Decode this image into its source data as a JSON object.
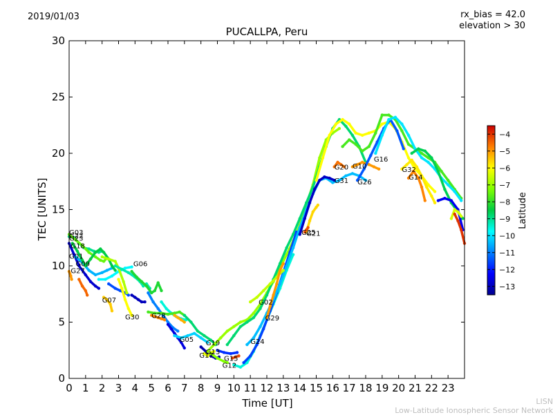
{
  "header": {
    "date": "2019/01/03",
    "rx_bias": "rx_bias = 42.0",
    "elevation": "elevation > 30"
  },
  "footer": {
    "line1": "LISN",
    "line2": "Low-Latitude Ionospheric Sensor Network"
  },
  "chart_data": {
    "type": "scatter",
    "title": "PUCALLPA, Peru",
    "xlabel": "Time [UT]",
    "ylabel": "TEC [UNITS]",
    "xlim": [
      0,
      24
    ],
    "ylim": [
      0,
      30
    ],
    "xticks": [
      0,
      1,
      2,
      3,
      4,
      5,
      6,
      7,
      8,
      9,
      10,
      11,
      12,
      13,
      14,
      15,
      16,
      17,
      18,
      19,
      20,
      21,
      22,
      23
    ],
    "yticks": [
      0,
      5,
      10,
      15,
      20,
      25,
      30
    ],
    "grid": false,
    "colorbar": {
      "label": "Latitude",
      "range": [
        -13.5,
        -3.5
      ],
      "ticks": [
        -4,
        -5,
        -6,
        -7,
        -8,
        -9,
        -10,
        -11,
        -12,
        -13
      ],
      "colormap": "jet"
    },
    "labels": [
      {
        "text": "G03",
        "x": 0.0,
        "y": 13.0
      },
      {
        "text": "G22",
        "x": 0.0,
        "y": 12.7
      },
      {
        "text": "G23",
        "x": 0.0,
        "y": 12.5
      },
      {
        "text": "G18",
        "x": 0.1,
        "y": 11.8
      },
      {
        "text": "G01",
        "x": 0.0,
        "y": 10.9
      },
      {
        "text": "G09",
        "x": 0.4,
        "y": 10.2
      },
      {
        "text": "G27",
        "x": 0.1,
        "y": 9.6
      },
      {
        "text": "G06",
        "x": 3.9,
        "y": 10.2
      },
      {
        "text": "G07",
        "x": 2.0,
        "y": 7.0
      },
      {
        "text": "G30",
        "x": 3.4,
        "y": 5.5
      },
      {
        "text": "G28",
        "x": 5.0,
        "y": 5.6
      },
      {
        "text": "G05",
        "x": 6.7,
        "y": 3.5
      },
      {
        "text": "G19",
        "x": 8.3,
        "y": 3.2
      },
      {
        "text": "G13",
        "x": 8.3,
        "y": 2.4
      },
      {
        "text": "G17",
        "x": 7.9,
        "y": 2.1
      },
      {
        "text": "G15",
        "x": 9.4,
        "y": 1.8
      },
      {
        "text": "G12",
        "x": 9.3,
        "y": 1.2
      },
      {
        "text": "G24",
        "x": 11.0,
        "y": 3.3
      },
      {
        "text": "G02",
        "x": 11.5,
        "y": 6.8
      },
      {
        "text": "G29",
        "x": 11.9,
        "y": 5.4
      },
      {
        "text": "G25",
        "x": 14.1,
        "y": 13.0
      },
      {
        "text": "G21",
        "x": 14.4,
        "y": 12.9
      },
      {
        "text": "G31",
        "x": 16.1,
        "y": 17.6
      },
      {
        "text": "G20",
        "x": 16.1,
        "y": 18.8
      },
      {
        "text": "G10",
        "x": 17.2,
        "y": 18.9
      },
      {
        "text": "G26",
        "x": 17.5,
        "y": 17.5
      },
      {
        "text": "G16",
        "x": 18.5,
        "y": 19.5
      },
      {
        "text": "G32",
        "x": 20.2,
        "y": 18.6
      },
      {
        "text": "G14",
        "x": 20.6,
        "y": 17.9
      }
    ],
    "series": [
      {
        "lat": -5.0,
        "x": [
          0.0,
          0.05,
          0.1,
          0.15
        ],
        "y": [
          9.5,
          9.3,
          9.1,
          8.8
        ]
      },
      {
        "lat": -12.8,
        "x": [
          0.0,
          0.3,
          0.6,
          1.0,
          1.3,
          1.6,
          1.8
        ],
        "y": [
          12.0,
          11.0,
          10.0,
          9.2,
          8.6,
          8.2,
          8.0
        ]
      },
      {
        "lat": -9.0,
        "x": [
          0.0,
          0.3,
          0.6,
          0.9,
          1.2,
          1.5,
          1.8,
          2.0
        ],
        "y": [
          12.6,
          12.5,
          12.0,
          11.6,
          11.5,
          11.3,
          11.2,
          11.3
        ]
      },
      {
        "lat": -7.5,
        "x": [
          0.0,
          0.4,
          0.8,
          1.2,
          1.6,
          1.9,
          2.1,
          2.3
        ],
        "y": [
          12.8,
          12.3,
          11.8,
          11.2,
          10.8,
          10.5,
          10.4,
          10.7
        ]
      },
      {
        "lat": -4.5,
        "x": [
          0.6,
          0.8,
          1.0,
          1.1
        ],
        "y": [
          8.8,
          8.2,
          7.8,
          7.4
        ]
      },
      {
        "lat": -10.5,
        "x": [
          0.4,
          0.8,
          1.2,
          1.6,
          2.0,
          2.3,
          2.6
        ],
        "y": [
          10.8,
          10.3,
          9.6,
          9.2,
          9.4,
          9.6,
          9.8
        ]
      },
      {
        "lat": -8.5,
        "x": [
          0.2,
          0.5,
          0.8,
          1.0,
          1.3,
          1.6,
          1.9,
          2.1,
          2.4,
          2.6,
          2.8
        ],
        "y": [
          12.0,
          11.3,
          10.5,
          10.0,
          10.6,
          11.2,
          11.5,
          11.2,
          10.6,
          10.0,
          9.6
        ]
      },
      {
        "lat": -5.5,
        "x": [
          2.1,
          2.3,
          2.5,
          2.6
        ],
        "y": [
          7.2,
          7.0,
          6.6,
          6.0
        ]
      },
      {
        "lat": -9.8,
        "x": [
          1.8,
          2.2,
          2.6,
          3.0,
          3.4,
          3.8
        ],
        "y": [
          8.8,
          8.8,
          9.1,
          9.5,
          9.8,
          9.9
        ]
      },
      {
        "lat": -11.5,
        "x": [
          2.4,
          2.8,
          3.1,
          3.4,
          3.6
        ],
        "y": [
          8.4,
          8.0,
          7.8,
          7.6,
          7.4
        ]
      },
      {
        "lat": -6.0,
        "x": [
          3.0,
          3.2,
          3.4,
          3.6,
          3.8
        ],
        "y": [
          8.8,
          8.0,
          7.0,
          6.2,
          5.6
        ]
      },
      {
        "lat": -6.8,
        "x": [
          2.0,
          2.4,
          2.8,
          3.0,
          3.3,
          3.5
        ],
        "y": [
          10.8,
          10.6,
          10.4,
          9.8,
          8.6,
          7.6
        ]
      },
      {
        "lat": -13.0,
        "x": [
          3.8,
          4.0,
          4.2,
          4.4,
          4.6
        ],
        "y": [
          7.4,
          7.2,
          7.0,
          6.8,
          6.8
        ]
      },
      {
        "lat": -9.2,
        "x": [
          2.8,
          3.2,
          3.6,
          4.0,
          4.3,
          4.5,
          4.7,
          4.9
        ],
        "y": [
          10.0,
          9.7,
          9.4,
          9.0,
          8.6,
          8.2,
          8.4,
          8.0
        ]
      },
      {
        "lat": -8.2,
        "x": [
          3.8,
          4.1,
          4.4,
          4.7,
          5.0,
          5.2,
          5.4,
          5.6
        ],
        "y": [
          9.5,
          9.0,
          8.6,
          8.2,
          7.6,
          7.8,
          8.5,
          7.8
        ]
      },
      {
        "lat": -11.0,
        "x": [
          4.8,
          5.1,
          5.4,
          5.7,
          6.0,
          6.3,
          6.6
        ],
        "y": [
          7.6,
          6.8,
          6.2,
          5.6,
          5.0,
          4.5,
          4.2
        ]
      },
      {
        "lat": -9.5,
        "x": [
          5.6,
          5.9,
          6.2,
          6.5,
          6.8,
          7.1
        ],
        "y": [
          6.8,
          6.2,
          5.8,
          5.5,
          5.3,
          5.2
        ]
      },
      {
        "lat": -4.8,
        "x": [
          5.0,
          5.2,
          5.4,
          5.6,
          5.8
        ],
        "y": [
          5.6,
          5.5,
          5.4,
          5.3,
          5.2
        ]
      },
      {
        "lat": -7.8,
        "x": [
          4.8,
          5.2,
          5.6,
          6.0,
          6.4,
          6.7,
          7.0
        ],
        "y": [
          5.9,
          5.8,
          5.8,
          5.7,
          5.8,
          5.9,
          5.6
        ]
      },
      {
        "lat": -5.2,
        "x": [
          6.4,
          6.6,
          6.8,
          7.0
        ],
        "y": [
          5.6,
          5.4,
          5.2,
          5.0
        ]
      },
      {
        "lat": -12.6,
        "x": [
          6.0,
          6.2,
          6.4,
          6.6,
          6.8,
          7.0
        ],
        "y": [
          4.8,
          4.4,
          4.0,
          3.6,
          3.2,
          2.7
        ]
      },
      {
        "lat": -10.2,
        "x": [
          6.4,
          6.8,
          7.2,
          7.6,
          8.0,
          8.4
        ],
        "y": [
          3.8,
          3.6,
          3.8,
          4.0,
          3.6,
          3.2
        ]
      },
      {
        "lat": -8.8,
        "x": [
          7.0,
          7.4,
          7.8,
          8.2,
          8.6,
          8.9
        ],
        "y": [
          5.6,
          5.0,
          4.2,
          3.8,
          3.4,
          3.0
        ]
      },
      {
        "lat": -13.2,
        "x": [
          8.0,
          8.3,
          8.6,
          8.9,
          9.1
        ],
        "y": [
          2.8,
          2.4,
          2.0,
          1.8,
          1.9
        ]
      },
      {
        "lat": -6.2,
        "x": [
          8.2,
          8.4,
          8.6,
          8.8
        ],
        "y": [
          2.2,
          2.0,
          2.3,
          2.4
        ]
      },
      {
        "lat": -7.2,
        "x": [
          8.6,
          9.0,
          9.4,
          9.6
        ],
        "y": [
          2.2,
          1.8,
          1.5,
          1.4
        ]
      },
      {
        "lat": -4.2,
        "x": [
          9.9,
          10.1,
          10.3
        ],
        "y": [
          1.8,
          1.9,
          2.0
        ]
      },
      {
        "lat": -11.8,
        "x": [
          9.0,
          9.4,
          9.8,
          10.2
        ],
        "y": [
          2.5,
          2.3,
          2.2,
          2.3
        ]
      },
      {
        "lat": -7.0,
        "x": [
          8.4,
          8.8,
          9.2,
          9.6,
          10.0,
          10.4,
          10.8,
          11.2,
          11.6,
          12.0,
          12.4,
          12.8,
          13.2,
          13.6,
          14.0,
          14.4,
          14.8,
          15.2,
          15.6,
          16.0,
          16.4
        ],
        "y": [
          2.4,
          3.0,
          3.6,
          4.2,
          4.6,
          5.0,
          5.2,
          5.8,
          6.6,
          7.6,
          8.6,
          9.8,
          11.0,
          12.2,
          13.6,
          15.4,
          17.2,
          19.6,
          21.2,
          21.8,
          22.2
        ]
      },
      {
        "lat": -8.8,
        "x": [
          9.6,
          10.0,
          10.4,
          10.8,
          11.2,
          11.6,
          12.0,
          12.4,
          12.8,
          13.2,
          13.6,
          14.0,
          14.4,
          14.8,
          15.2,
          15.6,
          16.0,
          16.4,
          16.8,
          17.2,
          17.6,
          18.0
        ],
        "y": [
          3.0,
          3.8,
          4.6,
          5.0,
          5.4,
          6.2,
          7.4,
          8.8,
          10.2,
          11.6,
          12.8,
          14.2,
          15.6,
          17.0,
          18.8,
          20.6,
          22.2,
          23.0,
          22.4,
          21.6,
          20.6,
          19.2
        ]
      },
      {
        "lat": -9.5,
        "x": [
          10.0,
          10.4,
          10.8,
          11.2,
          11.6,
          12.0,
          12.4,
          12.8,
          13.2,
          13.6
        ],
        "y": [
          1.2,
          1.0,
          1.4,
          2.4,
          3.8,
          5.2,
          6.6,
          8.0,
          9.6,
          11.0
        ]
      },
      {
        "lat": -11.6,
        "x": [
          10.6,
          11.0,
          11.4,
          11.8,
          12.2,
          12.6,
          13.0,
          13.4,
          13.8
        ],
        "y": [
          1.4,
          2.0,
          3.0,
          4.4,
          6.0,
          7.6,
          9.4,
          11.2,
          13.0
        ]
      },
      {
        "lat": -10.4,
        "x": [
          10.8,
          11.2,
          11.6,
          12.0,
          12.4,
          12.8,
          13.2,
          13.6,
          14.0,
          14.4,
          14.8,
          15.2,
          15.6,
          16.0,
          16.4,
          16.8,
          17.2,
          17.6,
          18.0
        ],
        "y": [
          3.0,
          3.6,
          4.6,
          5.8,
          7.0,
          8.4,
          10.0,
          11.6,
          13.4,
          15.0,
          16.4,
          17.6,
          17.8,
          17.4,
          17.6,
          18.0,
          18.2,
          18.0,
          17.6
        ]
      },
      {
        "lat": -6.6,
        "x": [
          11.0,
          11.4,
          11.8,
          12.2,
          12.6,
          13.0
        ],
        "y": [
          6.8,
          7.2,
          7.8,
          8.4,
          9.0,
          9.6
        ]
      },
      {
        "lat": -5.0,
        "x": [
          12.0,
          12.2,
          12.4,
          12.6,
          12.8,
          13.0
        ],
        "y": [
          5.4,
          6.4,
          7.4,
          8.4,
          9.6,
          10.2
        ]
      },
      {
        "lat": -12.9,
        "x": [
          14.0,
          14.3,
          14.6,
          14.9,
          15.2,
          15.5,
          15.8,
          16.1
        ],
        "y": [
          12.8,
          14.2,
          15.6,
          16.8,
          17.6,
          17.9,
          17.8,
          17.6
        ]
      },
      {
        "lat": -5.6,
        "x": [
          14.4,
          14.6,
          14.8,
          15.0,
          15.1
        ],
        "y": [
          13.0,
          14.0,
          14.8,
          15.2,
          15.4
        ]
      },
      {
        "lat": -4.3,
        "x": [
          14.3,
          14.4,
          14.5
        ],
        "y": [
          13.0,
          13.2,
          13.4
        ]
      },
      {
        "lat": -6.0,
        "x": [
          15.0,
          15.4,
          15.8,
          16.2,
          16.6,
          17.0,
          17.4,
          17.8,
          18.2,
          18.6,
          19.0,
          19.4,
          19.8,
          20.2,
          20.6,
          21.0,
          21.4,
          21.8,
          22.2
        ],
        "y": [
          17.6,
          19.6,
          21.6,
          22.6,
          23.0,
          22.6,
          21.8,
          21.6,
          21.8,
          22.0,
          22.6,
          22.8,
          22.2,
          21.0,
          19.6,
          18.6,
          18.0,
          17.2,
          16.6
        ]
      },
      {
        "lat": -7.8,
        "x": [
          16.6,
          17.0,
          17.4,
          17.8,
          18.2,
          18.6,
          19.0,
          19.4,
          19.8,
          20.2,
          20.6,
          21.0,
          21.4,
          21.8,
          22.2,
          22.6,
          23.0,
          23.4,
          23.8
        ],
        "y": [
          20.6,
          21.2,
          20.8,
          20.2,
          20.6,
          21.8,
          23.4,
          23.4,
          23.0,
          22.0,
          20.8,
          20.4,
          20.0,
          19.6,
          19.2,
          18.4,
          17.6,
          16.8,
          16.0
        ]
      },
      {
        "lat": -4.6,
        "x": [
          16.1,
          16.3,
          16.5,
          16.7
        ],
        "y": [
          18.8,
          19.2,
          19.0,
          18.8
        ]
      },
      {
        "lat": -5.0,
        "x": [
          17.2,
          17.5,
          17.8,
          18.2,
          18.5,
          18.8
        ],
        "y": [
          18.8,
          19.0,
          19.2,
          19.0,
          18.8,
          18.6
        ]
      },
      {
        "lat": -11.4,
        "x": [
          17.5,
          17.9,
          18.3,
          18.7,
          19.1,
          19.5,
          19.9,
          20.3
        ],
        "y": [
          17.6,
          18.6,
          19.8,
          21.0,
          22.2,
          23.0,
          22.0,
          20.4
        ]
      },
      {
        "lat": -10.0,
        "x": [
          18.6,
          19.0,
          19.4,
          19.8,
          20.2,
          20.6,
          21.0,
          21.4,
          21.8,
          22.2,
          22.6,
          23.0,
          23.4,
          23.8
        ],
        "y": [
          20.0,
          21.6,
          23.0,
          23.2,
          22.6,
          21.6,
          20.4,
          19.6,
          19.2,
          18.6,
          17.8,
          17.2,
          16.6,
          15.8
        ]
      },
      {
        "lat": -5.8,
        "x": [
          20.2,
          20.5,
          20.8,
          21.1,
          21.4,
          21.7,
          22.0,
          22.2
        ],
        "y": [
          18.6,
          19.0,
          19.4,
          18.8,
          18.0,
          17.0,
          16.2,
          15.6
        ]
      },
      {
        "lat": -4.8,
        "x": [
          20.6,
          20.9,
          21.2,
          21.4,
          21.6
        ],
        "y": [
          17.8,
          18.4,
          17.8,
          17.0,
          15.8
        ]
      },
      {
        "lat": -8.6,
        "x": [
          20.8,
          21.2,
          21.6,
          22.0,
          22.4,
          22.8,
          23.2,
          23.6,
          23.9
        ],
        "y": [
          20.0,
          20.4,
          20.2,
          19.6,
          18.4,
          16.8,
          15.6,
          14.8,
          14.2
        ]
      },
      {
        "lat": -12.4,
        "x": [
          22.4,
          22.8,
          23.2,
          23.6,
          23.9
        ],
        "y": [
          15.8,
          16.0,
          15.8,
          15.0,
          13.2
        ]
      },
      {
        "lat": -6.4,
        "x": [
          23.2,
          23.4,
          23.6,
          23.8
        ],
        "y": [
          14.2,
          15.0,
          14.8,
          14.4
        ]
      },
      {
        "lat": -4.0,
        "x": [
          23.4,
          23.6,
          23.8,
          24.0
        ],
        "y": [
          14.6,
          14.0,
          13.2,
          12.0
        ]
      }
    ]
  }
}
